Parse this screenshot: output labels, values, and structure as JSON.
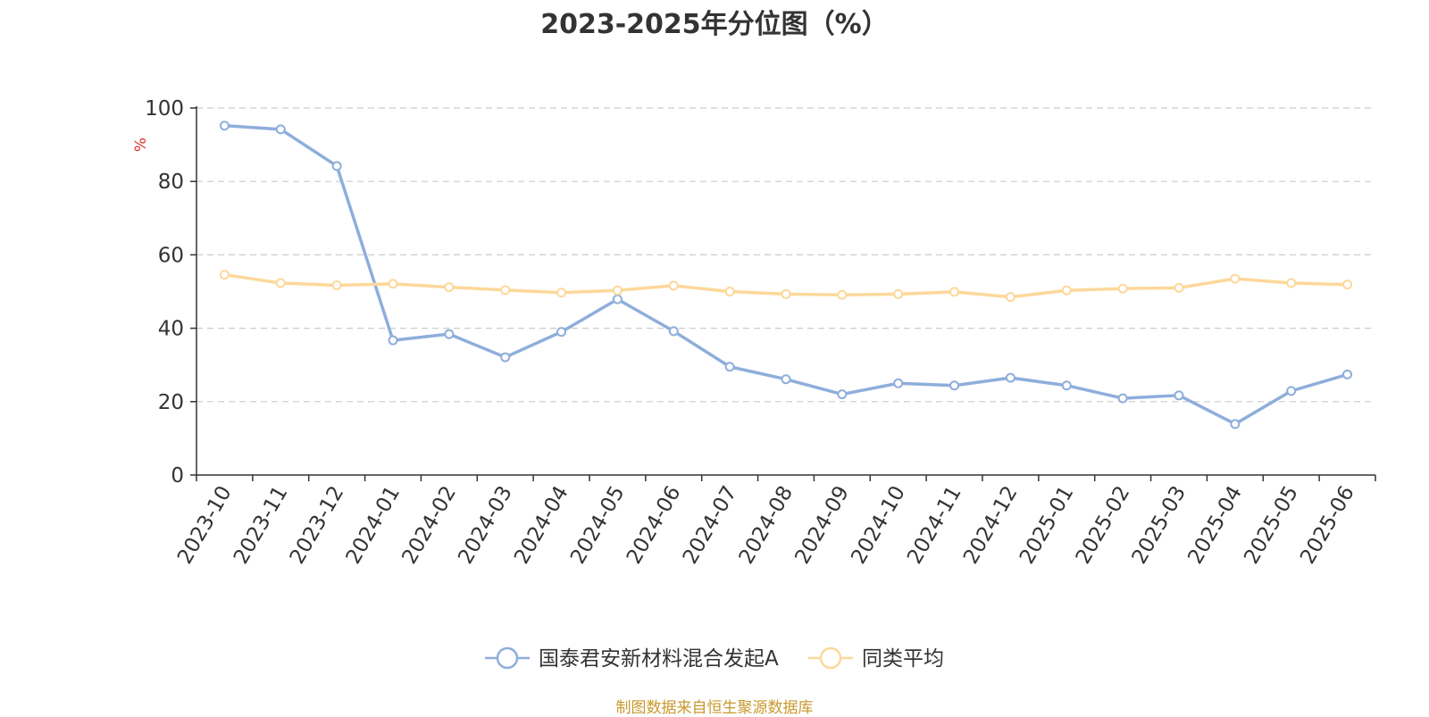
{
  "chart_data": {
    "type": "line",
    "title": "2023-2025年分位图（%）",
    "ylabel": "%",
    "xlabel": "",
    "ylim": [
      0,
      100
    ],
    "yticks": [
      0,
      20,
      40,
      60,
      80,
      100
    ],
    "grid": true,
    "legend": "bottom",
    "categories": [
      "2023-10",
      "2023-11",
      "2023-12",
      "2024-01",
      "2024-02",
      "2024-03",
      "2024-04",
      "2024-05",
      "2024-06",
      "2024-07",
      "2024-08",
      "2024-09",
      "2024-10",
      "2024-11",
      "2024-12",
      "2025-01",
      "2025-02",
      "2025-03",
      "2025-04",
      "2025-05",
      "2025-06"
    ],
    "series": [
      {
        "name": "国泰君安新材料混合发起A",
        "color": "#8eaedb",
        "values": [
          95.2,
          94.2,
          84.2,
          36.7,
          38.4,
          32.1,
          39.0,
          47.9,
          39.2,
          29.5,
          26.1,
          22.0,
          25.0,
          24.4,
          26.5,
          24.4,
          20.9,
          21.7,
          13.9,
          22.9,
          27.4
        ]
      },
      {
        "name": "同类平均",
        "color": "#fdd89a",
        "values": [
          54.6,
          52.3,
          51.7,
          52.1,
          51.2,
          50.4,
          49.7,
          50.3,
          51.6,
          50.0,
          49.3,
          49.1,
          49.3,
          49.9,
          48.5,
          50.3,
          50.8,
          51.0,
          53.5,
          52.3,
          51.9
        ]
      }
    ]
  },
  "source_note": "制图数据来自恒生聚源数据库"
}
